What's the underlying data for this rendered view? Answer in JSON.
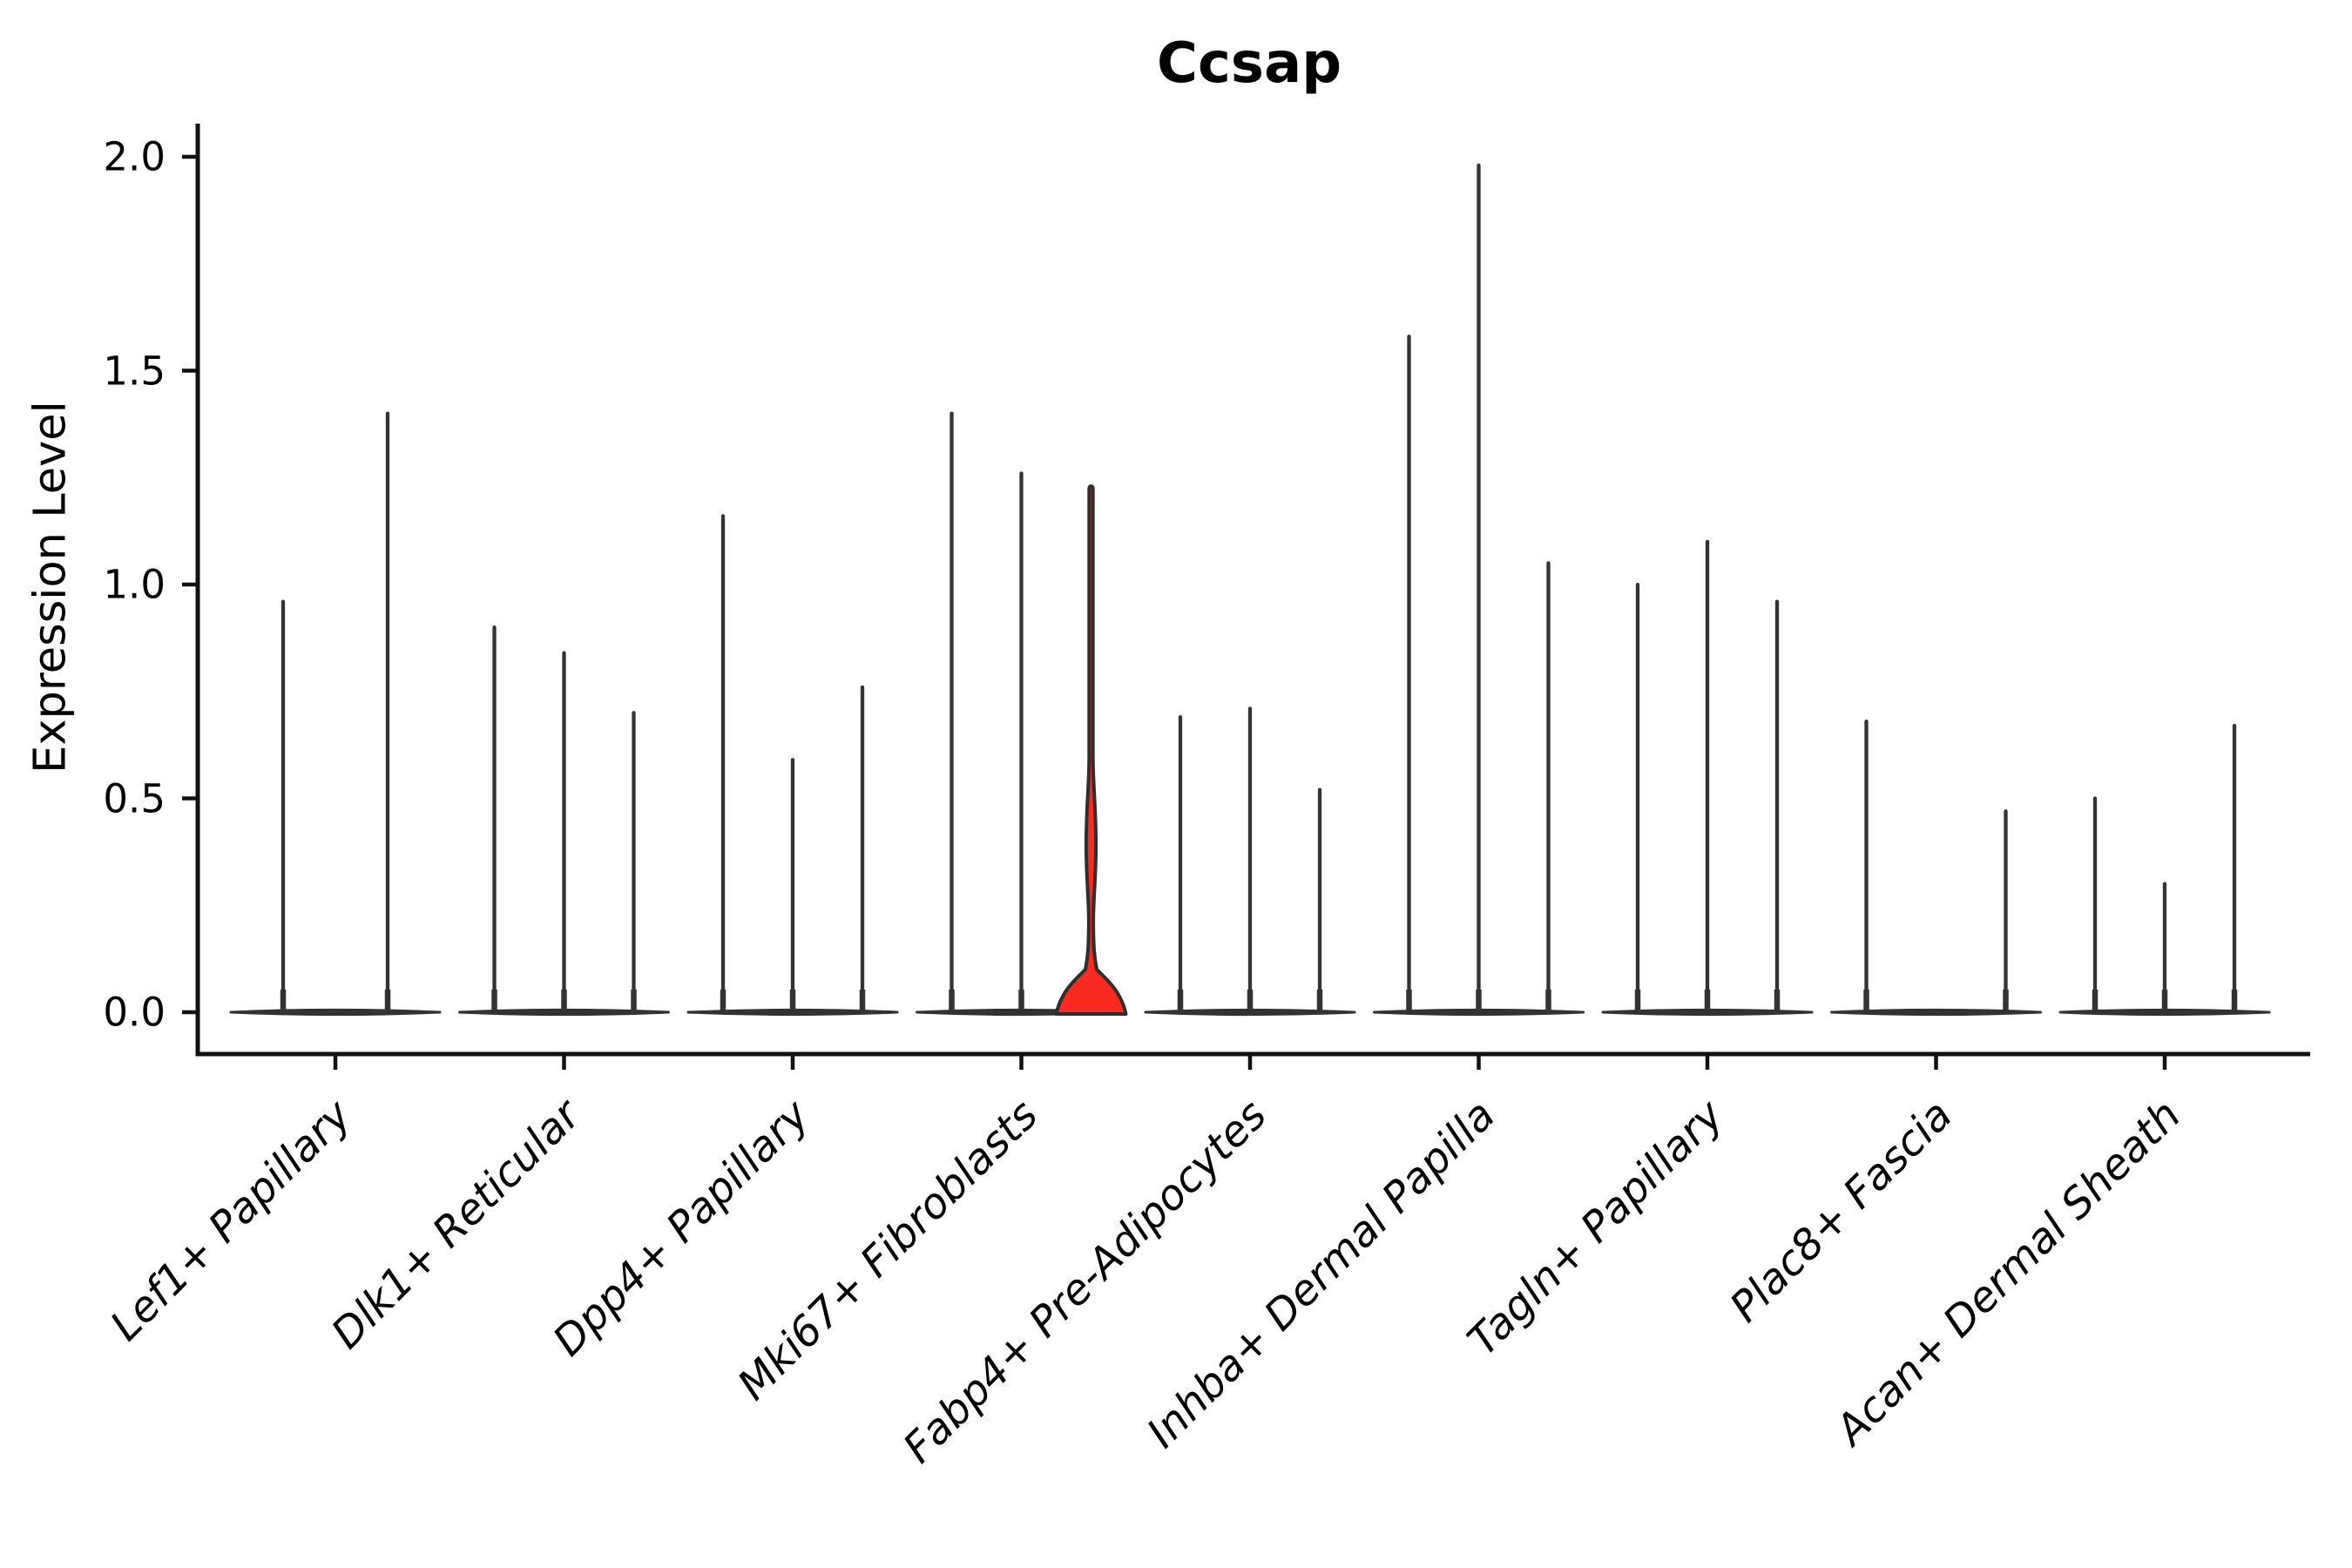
{
  "chart_data": {
    "type": "violin",
    "title": "Ccsap",
    "ylabel": "Expression Level",
    "ylim": [
      0,
      2.05
    ],
    "yticks": [
      "0.0",
      "0.5",
      "1.0",
      "1.5",
      "2.0"
    ],
    "ytick_values": [
      0.0,
      0.5,
      1.0,
      1.5,
      2.0
    ],
    "grid": false,
    "legend": null,
    "categories": [
      "Lef1+ Papillary",
      "Dlk1+ Reticular",
      "Dpp4+ Papillary",
      "Mki67+ Fibroblasts",
      "Fabp4+ Pre-Adipocytes",
      "Inhba+ Dermal Papilla",
      "Tagln+ Papillary",
      "Plac8+ Fascia",
      "Acan+ Dermal Sheath"
    ],
    "groups": [
      {
        "category": "Lef1+ Papillary",
        "violin_maxima": [
          0.96,
          1.4
        ]
      },
      {
        "category": "Dlk1+ Reticular",
        "violin_maxima": [
          0.9,
          0.84,
          0.7
        ]
      },
      {
        "category": "Dpp4+ Papillary",
        "violin_maxima": [
          1.16,
          0.59,
          0.76
        ]
      },
      {
        "category": "Mki67+ Fibroblasts",
        "violin_maxima": [
          1.4,
          1.26,
          1.23
        ]
      },
      {
        "category": "Fabp4+ Pre-Adipocytes",
        "violin_maxima": [
          0.69,
          0.71,
          0.52
        ]
      },
      {
        "category": "Inhba+ Dermal Papilla",
        "violin_maxima": [
          1.58,
          1.98,
          1.05
        ]
      },
      {
        "category": "Tagln+ Papillary",
        "violin_maxima": [
          1.0,
          1.1,
          0.96
        ]
      },
      {
        "category": "Plac8+ Fascia",
        "violin_maxima": [
          0.68,
          0.0,
          0.47
        ]
      },
      {
        "category": "Acan+ Dermal Sheath",
        "violin_maxima": [
          0.5,
          0.3,
          0.67
        ]
      }
    ],
    "highlight": {
      "category": "Mki67+ Fibroblasts",
      "violin_index": 2,
      "max": 1.23,
      "base_bump_top": 0.1,
      "bulge_range": [
        0.26,
        0.52
      ],
      "bulge_peak": 0.39,
      "fill": "#F92A20"
    },
    "colors": {
      "violin_ink": "#333333",
      "axis_color": "#111111",
      "highlight_fill": "#F92A20",
      "background": "#ffffff"
    }
  }
}
